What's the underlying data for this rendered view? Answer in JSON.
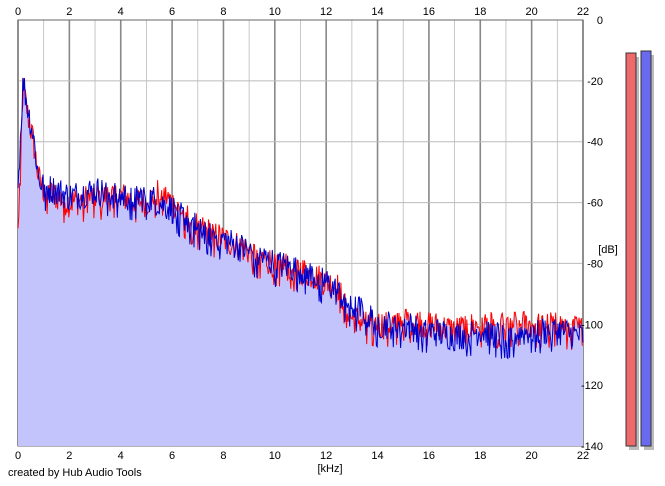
{
  "chart_data": {
    "type": "area",
    "xlabel": "[kHz]",
    "ylabel": "[dB]",
    "xlim": [
      0,
      22
    ],
    "ylim": [
      -140,
      0
    ],
    "x_ticks": [
      "0",
      "2",
      "4",
      "6",
      "8",
      "10",
      "12",
      "14",
      "16",
      "18",
      "20",
      "22"
    ],
    "y_ticks": [
      "0",
      "-20",
      "-40",
      "-60",
      "-80",
      "-100",
      "-120",
      "-140"
    ],
    "grid": true,
    "series": [
      {
        "color": "#ff0000",
        "points": [
          [
            0,
            -70
          ],
          [
            0.2,
            -22
          ],
          [
            0.4,
            -32
          ],
          [
            0.6,
            -40
          ],
          [
            0.8,
            -52
          ],
          [
            1,
            -56
          ],
          [
            1.5,
            -58
          ],
          [
            2,
            -60
          ],
          [
            3,
            -58
          ],
          [
            4,
            -58
          ],
          [
            5,
            -60
          ],
          [
            5.5,
            -56
          ],
          [
            6,
            -60
          ],
          [
            7,
            -68
          ],
          [
            8,
            -72
          ],
          [
            9,
            -76
          ],
          [
            10,
            -80
          ],
          [
            11,
            -82
          ],
          [
            12,
            -86
          ],
          [
            12.5,
            -88
          ],
          [
            13,
            -98
          ],
          [
            14,
            -100
          ],
          [
            14.5,
            -100
          ],
          [
            15,
            -98
          ],
          [
            16,
            -100
          ],
          [
            17,
            -102
          ],
          [
            18,
            -100
          ],
          [
            19,
            -100
          ],
          [
            20,
            -100
          ],
          [
            21,
            -100
          ],
          [
            22,
            -102
          ]
        ]
      },
      {
        "color": "#0000cc",
        "points": [
          [
            0,
            -55
          ],
          [
            0.2,
            -20
          ],
          [
            0.4,
            -30
          ],
          [
            0.6,
            -38
          ],
          [
            0.8,
            -52
          ],
          [
            1,
            -55
          ],
          [
            1.5,
            -56
          ],
          [
            2,
            -58
          ],
          [
            3,
            -56
          ],
          [
            4,
            -58
          ],
          [
            5,
            -58
          ],
          [
            6,
            -62
          ],
          [
            7,
            -68
          ],
          [
            8,
            -72
          ],
          [
            9,
            -76
          ],
          [
            10,
            -80
          ],
          [
            11,
            -82
          ],
          [
            12,
            -86
          ],
          [
            13,
            -94
          ],
          [
            13.5,
            -96
          ],
          [
            14,
            -100
          ],
          [
            15,
            -100
          ],
          [
            16,
            -102
          ],
          [
            17,
            -104
          ],
          [
            18,
            -102
          ],
          [
            19,
            -104
          ],
          [
            20,
            -102
          ],
          [
            21,
            -102
          ],
          [
            22,
            -104
          ]
        ]
      }
    ],
    "fill_color": "#c4c4fc",
    "level_meters": [
      {
        "color": "#ee6a6a",
        "level": 0.0
      },
      {
        "color": "#6a6aee",
        "level": 0.0
      }
    ]
  },
  "footer": {
    "credit": "created by Hub Audio Tools"
  },
  "colors": {
    "grid": "#bbbbbb",
    "major_grid": "#888888",
    "background": "#ffffff"
  }
}
